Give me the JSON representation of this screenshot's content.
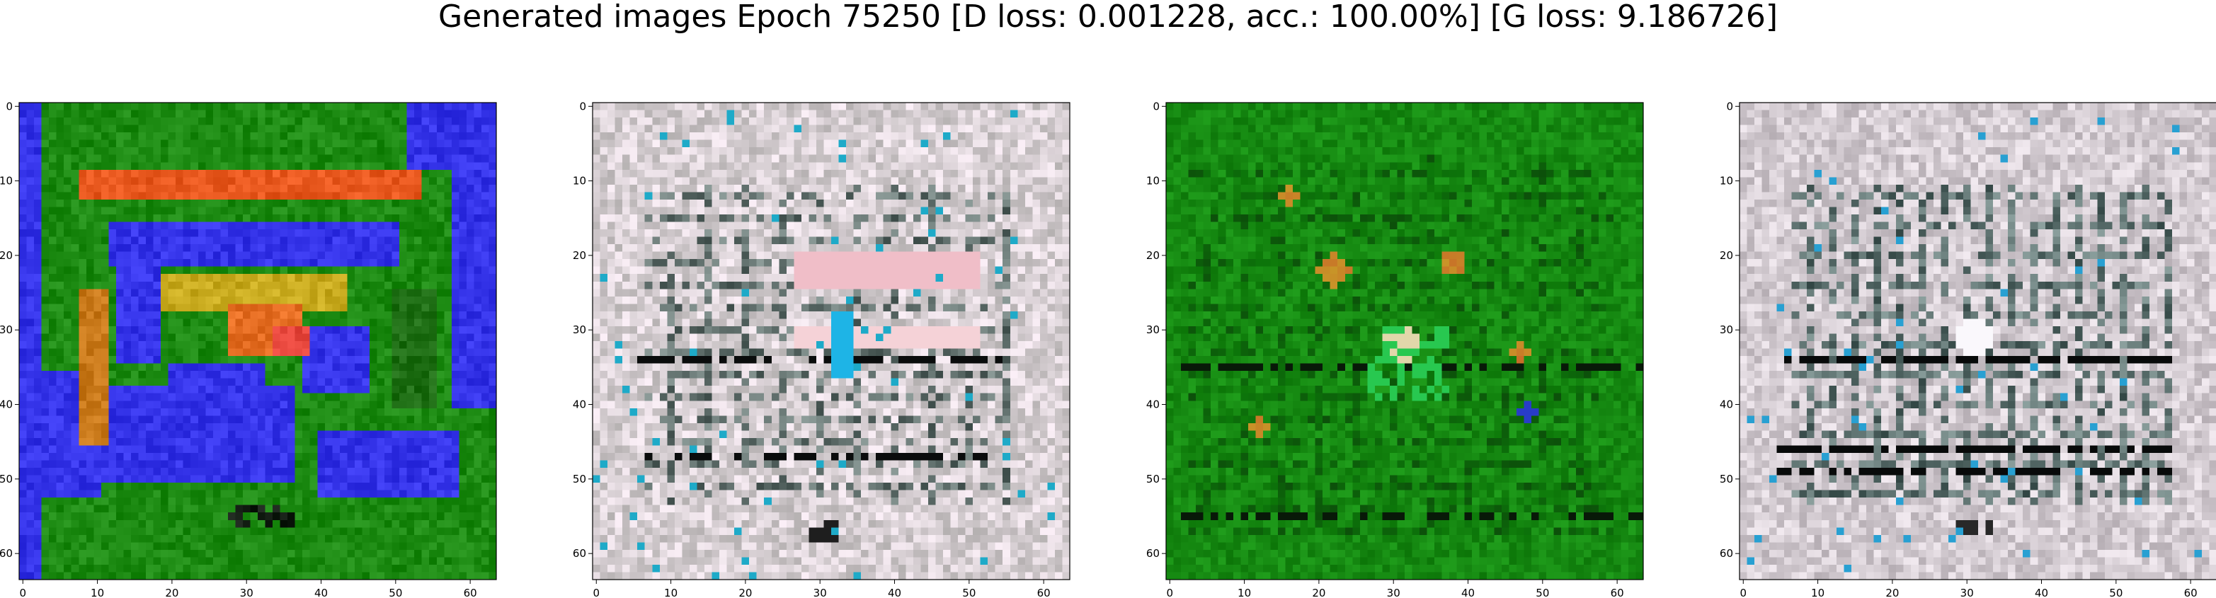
{
  "figure": {
    "title": "Generated images Epoch 75250 [D loss: 0.001228, acc.: 100.00%] [G loss: 9.186726]"
  },
  "chart_data": [
    {
      "type": "heatmap",
      "title": "",
      "x": [
        0,
        10,
        20,
        30,
        40,
        50,
        60
      ],
      "y": [
        0,
        10,
        20,
        30,
        40,
        50,
        60
      ],
      "xlim": [
        -0.5,
        63.5
      ],
      "ylim": [
        63.5,
        -0.5
      ],
      "grid": false,
      "colors": {
        "background": "#1c8a12",
        "frame": "#3433e8",
        "accent": "#e8581e",
        "highlight": "#d9a020"
      }
    },
    {
      "type": "heatmap",
      "title": "",
      "x": [
        0,
        10,
        20,
        30,
        40,
        50,
        60
      ],
      "y": [
        0,
        10,
        20,
        30,
        40,
        50,
        60
      ],
      "xlim": [
        -0.5,
        63.5
      ],
      "ylim": [
        63.5,
        -0.5
      ],
      "grid": false,
      "colors": {
        "background": "#d8d0d4",
        "lines": "#2d3c3a",
        "accent": "#f0b2c0",
        "highlight": "#18b8e0"
      }
    },
    {
      "type": "heatmap",
      "title": "",
      "x": [
        0,
        10,
        20,
        30,
        40,
        50,
        60
      ],
      "y": [
        0,
        10,
        20,
        30,
        40,
        50,
        60
      ],
      "xlim": [
        -0.5,
        63.5
      ],
      "ylim": [
        63.5,
        -0.5
      ],
      "grid": false,
      "colors": {
        "background": "#168a12",
        "lines": "#0c5a0a",
        "accent": "#c86a30",
        "highlight": "#2a3cc8"
      }
    },
    {
      "type": "heatmap",
      "title": "",
      "x": [
        0,
        10,
        20,
        30,
        40,
        50,
        60
      ],
      "y": [
        0,
        10,
        20,
        30,
        40,
        50,
        60
      ],
      "xlim": [
        -0.5,
        63.5
      ],
      "ylim": [
        63.5,
        -0.5
      ],
      "grid": false,
      "colors": {
        "background": "#d4ccd2",
        "lines": "#2f4544",
        "accent": "#ffffff",
        "highlight": "#38b0e0"
      }
    }
  ]
}
